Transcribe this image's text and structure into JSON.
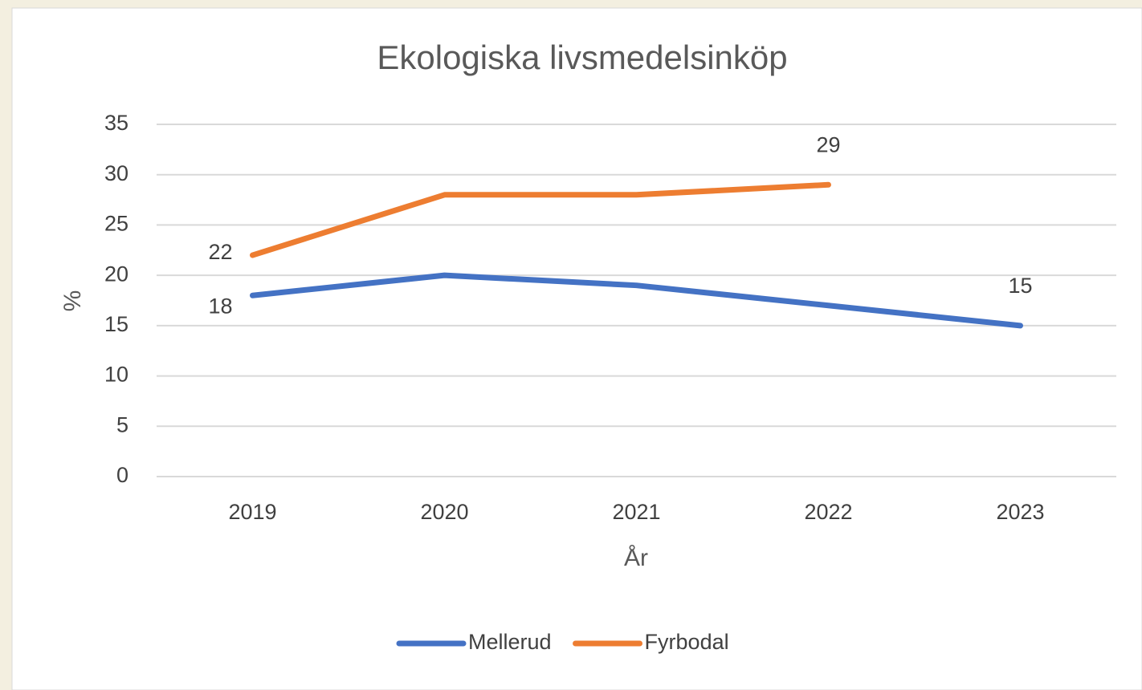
{
  "chart_data": {
    "type": "line",
    "title": "Ekologiska livsmedelsinköp",
    "x_label": "År",
    "y_label": "%",
    "categories": [
      "2019",
      "2020",
      "2021",
      "2022",
      "2023"
    ],
    "series": [
      {
        "name": "Mellerud",
        "color": "#4472c4",
        "values": [
          18,
          20,
          19,
          17,
          15
        ],
        "value_labels": [
          18,
          null,
          null,
          null,
          15
        ]
      },
      {
        "name": "Fyrbodal",
        "color": "#ed7d31",
        "values": [
          22,
          28,
          28,
          29,
          null
        ],
        "value_labels": [
          22,
          null,
          null,
          29,
          null
        ]
      }
    ],
    "ylim": [
      0,
      35
    ],
    "yticks": [
      0,
      5,
      10,
      15,
      20,
      25,
      30,
      35
    ],
    "grid": true,
    "legend": "bottom"
  }
}
